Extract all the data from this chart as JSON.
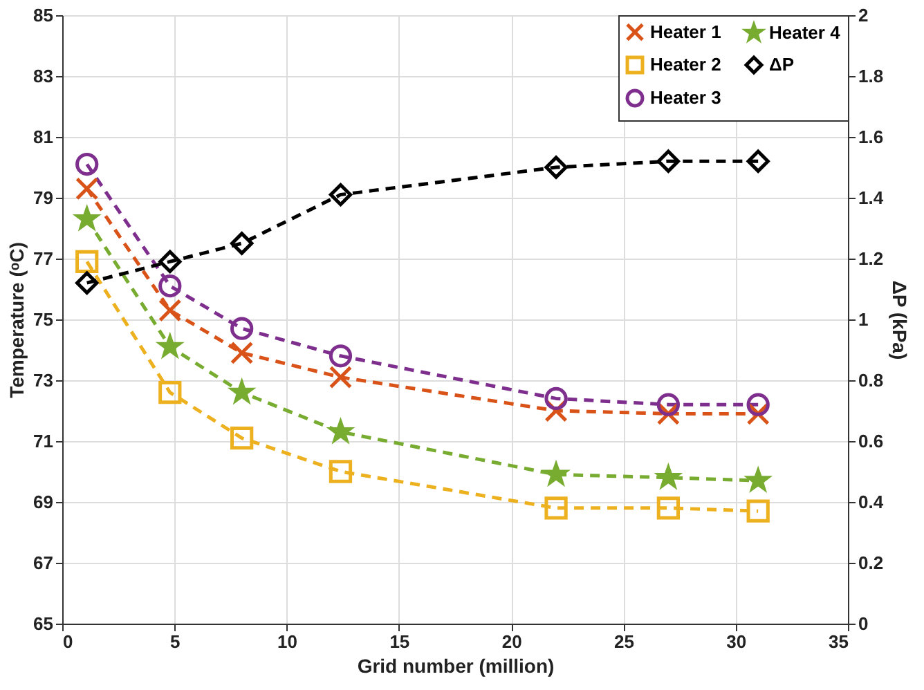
{
  "chart_data": {
    "type": "line",
    "xlabel": "Grid number (million)",
    "ylabel": "Temperature (ᵒC)",
    "y2label": "ΔP (kPa)",
    "x": [
      1.1,
      4.8,
      8,
      12.4,
      22,
      27,
      31
    ],
    "xlim": [
      0,
      35
    ],
    "xticks": [
      0,
      5,
      10,
      15,
      20,
      25,
      30,
      35
    ],
    "ylim": [
      65,
      85
    ],
    "yticks": [
      65,
      67,
      69,
      71,
      73,
      75,
      77,
      79,
      81,
      83,
      85
    ],
    "y2lim": [
      0,
      2
    ],
    "y2ticks": [
      0,
      0.2,
      0.4,
      0.6,
      0.8,
      1,
      1.2,
      1.4,
      1.6,
      1.8,
      2
    ],
    "grid": true,
    "legend": "top right",
    "line_style": "dashed",
    "series": [
      {
        "name": "Heater 1",
        "color": "#d95319",
        "marker": "cross",
        "values": [
          79.3,
          75.3,
          73.9,
          73.1,
          72.0,
          71.9,
          71.9
        ]
      },
      {
        "name": "Heater 2",
        "color": "#edb120",
        "marker": "square",
        "values": [
          76.9,
          72.6,
          71.1,
          70.0,
          68.8,
          68.8,
          68.7
        ]
      },
      {
        "name": "Heater 3",
        "color": "#7e2f8e",
        "marker": "circle",
        "values": [
          80.1,
          76.1,
          74.7,
          73.8,
          72.4,
          72.2,
          72.2
        ]
      },
      {
        "name": "Heater 4",
        "color": "#77ac30",
        "marker": "star",
        "values": [
          78.3,
          74.1,
          72.6,
          71.3,
          69.9,
          69.8,
          69.7
        ]
      },
      {
        "name": "ΔP",
        "color": "#000000",
        "marker": "diamond",
        "axis": "y2",
        "values": [
          1.12,
          1.19,
          1.25,
          1.41,
          1.5,
          1.52,
          1.52
        ]
      }
    ]
  }
}
